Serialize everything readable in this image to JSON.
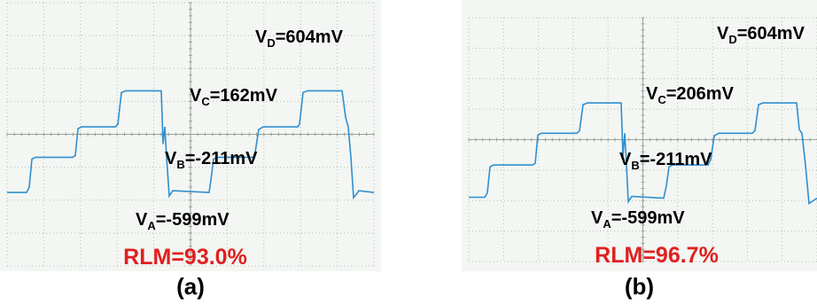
{
  "chart_data": [
    {
      "type": "line",
      "caption": "(a)",
      "grid": true,
      "line_color": "#2f8fd0",
      "annotations": [
        {
          "name": "D",
          "prefix": "V",
          "sub": "D",
          "text": "=604mV"
        },
        {
          "name": "C",
          "prefix": "V",
          "sub": "C",
          "text": "=162mV"
        },
        {
          "name": "B",
          "prefix": "V",
          "sub": "B",
          "text": "=-211mV"
        },
        {
          "name": "A",
          "prefix": "V",
          "sub": "A",
          "text": "=-599mV"
        }
      ],
      "rlm": {
        "text": "RLM=93.0%",
        "color": "#e02020"
      },
      "levels_mV": {
        "A": -599,
        "B": -211,
        "C": 162,
        "D": 604
      }
    },
    {
      "type": "line",
      "caption": "(b)",
      "grid": true,
      "line_color": "#2f8fd0",
      "annotations": [
        {
          "name": "D",
          "prefix": "V",
          "sub": "D",
          "text": "=604mV"
        },
        {
          "name": "C",
          "prefix": "V",
          "sub": "C",
          "text": "=206mV"
        },
        {
          "name": "B",
          "prefix": "V",
          "sub": "B",
          "text": "=-211mV"
        },
        {
          "name": "A",
          "prefix": "V",
          "sub": "A",
          "text": "=-599mV"
        }
      ],
      "rlm": {
        "text": "RLM=96.7%",
        "color": "#e02020"
      },
      "levels_mV": {
        "A": -599,
        "B": -211,
        "C": 206,
        "D": 604
      }
    }
  ]
}
